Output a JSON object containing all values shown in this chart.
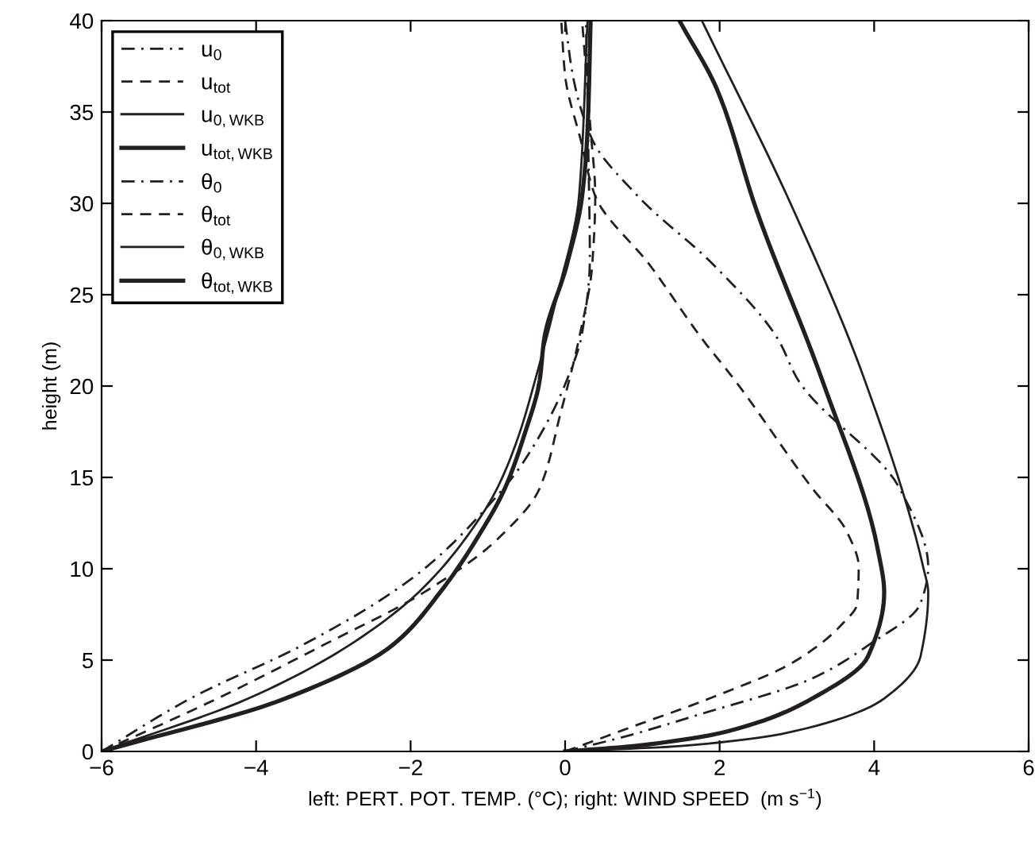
{
  "chart_data": {
    "type": "line",
    "xlabel": "left: PERT. POT. TEMP. (°C); right: WIND SPEED  (m s$^{−1}$)",
    "ylabel": "height (m)",
    "xlim": [
      -6,
      6
    ],
    "ylim": [
      0,
      40
    ],
    "xticks": [
      {
        "value": -6,
        "label": "−6"
      },
      {
        "value": -4,
        "label": "−4"
      },
      {
        "value": -2,
        "label": "−2"
      },
      0,
      2,
      4,
      6
    ],
    "yticks": [
      0,
      5,
      10,
      15,
      20,
      25,
      30,
      35,
      40
    ],
    "grid": false,
    "legend": "top left",
    "series": [
      {
        "name": "u$_{0}$",
        "color": "#231f20",
        "line_style": "dashdot",
        "x": [
          0,
          0.76,
          1.72,
          3.2,
          3.92,
          4.6,
          4.7,
          4.33,
          3.02,
          2.75,
          1.93,
          0.94,
          0.35,
          0.1,
          0.0
        ],
        "values": [
          0,
          0.8,
          2,
          4,
          5.8,
          8.1,
          10.1,
          14.4,
          20.3,
          22.6,
          26.6,
          30.4,
          33.5,
          37,
          40
        ]
      },
      {
        "name": "u$_{tot}$",
        "color": "#231f20",
        "line_style": "dashed",
        "x": [
          0,
          0.9,
          1.87,
          2.96,
          3.57,
          3.78,
          3.8,
          3.65,
          3.2,
          2.2,
          1.77,
          1.1,
          0.39,
          0.2,
          0.0,
          -0.05
        ],
        "values": [
          0,
          1.4,
          2.9,
          4.9,
          6.9,
          8.1,
          10.1,
          12,
          14.4,
          20.3,
          22.6,
          26.6,
          30.4,
          33.5,
          37,
          40
        ]
      },
      {
        "name": "u$_{0,WKB}$",
        "color": "#231f20",
        "line_style": "solid",
        "x": [
          0,
          1.5,
          2.96,
          4.13,
          4.6,
          4.7,
          4.64,
          3.88,
          2.96,
          1.77
        ],
        "values": [
          0,
          0.3,
          1.1,
          2.9,
          5.2,
          8.7,
          10,
          20.3,
          29.6,
          40
        ]
      },
      {
        "name": "u$_{tot,WKB}$",
        "color": "#231f20",
        "line_style": "solid",
        "x": [
          0,
          0.9,
          2.1,
          3.2,
          3.92,
          4.13,
          4.05,
          3.33,
          2.48,
          1.97,
          1.48
        ],
        "values": [
          0,
          0.3,
          1.1,
          2.9,
          5.2,
          8.7,
          11,
          20.3,
          29.6,
          36.2,
          40
        ]
      },
      {
        "name": "θ$_{0}$",
        "color": "#231f20",
        "line_style": "dashdot",
        "x": [
          -6,
          -4.85,
          -3.41,
          -2.24,
          -1.71,
          -1.09,
          -0.53,
          0.02,
          0.22,
          0.32,
          0.3,
          0.27
        ],
        "values": [
          0,
          2.9,
          5.8,
          8.7,
          10.4,
          13,
          15.9,
          20.3,
          22.9,
          27,
          33,
          40
        ]
      },
      {
        "name": "θ$_{tot}$",
        "color": "#231f20",
        "line_style": "dashed",
        "x": [
          -6,
          -4.5,
          -3.14,
          -1.83,
          -0.88,
          -0.33,
          -0.06,
          0.18,
          0.35,
          0.39,
          0.33,
          0.22
        ],
        "values": [
          0,
          2.9,
          5.8,
          8.7,
          11.6,
          14.4,
          18.5,
          22.6,
          26.6,
          30.4,
          34,
          40
        ]
      },
      {
        "name": "θ$_{0,WKB}$",
        "color": "#231f20",
        "line_style": "solid",
        "x": [
          -6,
          -4.1,
          -2.8,
          -1.9,
          -1.3,
          -0.88,
          -0.6,
          -0.39,
          -0.1,
          0.18,
          0.29
        ],
        "values": [
          0,
          2.9,
          5.8,
          8.7,
          11.6,
          14.4,
          17.3,
          20.3,
          25,
          30.4,
          40
        ]
      },
      {
        "name": "θ$_{tot,WKB}$",
        "color": "#231f20",
        "line_style": "solid",
        "x": [
          -6,
          -3.62,
          -2.24,
          -1.62,
          -1.15,
          -0.78,
          -0.53,
          -0.33,
          -0.27,
          0.02,
          0.22,
          0.29,
          0.33
        ],
        "values": [
          0,
          2.9,
          5.8,
          8.7,
          11.6,
          14.4,
          17.3,
          20.3,
          22.6,
          26.6,
          30.4,
          34,
          40
        ]
      }
    ]
  }
}
